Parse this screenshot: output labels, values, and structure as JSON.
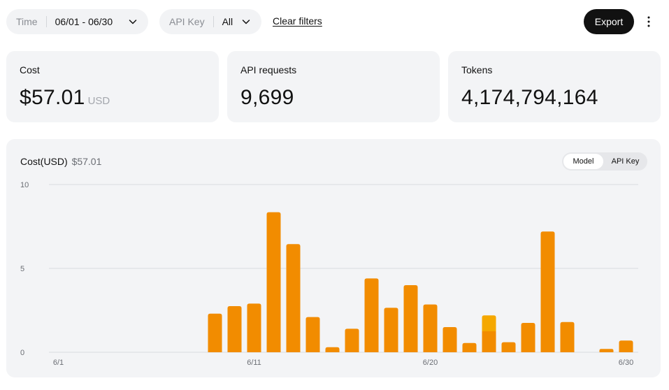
{
  "filters": {
    "time_label": "Time",
    "time_value": "06/01 - 06/30",
    "apikey_label": "API Key",
    "apikey_value": "All",
    "clear_label": "Clear filters"
  },
  "toolbar": {
    "export_label": "Export",
    "more_icon": "more-vertical-icon"
  },
  "stats": {
    "cost": {
      "title": "Cost",
      "value": "$57.01",
      "unit": "USD"
    },
    "requests": {
      "title": "API requests",
      "value": "9,699"
    },
    "tokens": {
      "title": "Tokens",
      "value": "4,174,794,164"
    }
  },
  "chart_panel": {
    "title": "Cost(USD)",
    "total": "$57.01",
    "group_by": {
      "options": [
        "Model",
        "API Key"
      ],
      "selected": "Model"
    }
  },
  "chart_data": {
    "type": "bar",
    "stacked": true,
    "ylim": [
      0,
      10
    ],
    "yticks": [
      "0",
      "5",
      "10"
    ],
    "x_tick_labels": [
      {
        "day": 1,
        "label": "6/1"
      },
      {
        "day": 11,
        "label": "6/11"
      },
      {
        "day": 20,
        "label": "6/20"
      },
      {
        "day": 30,
        "label": "6/30"
      }
    ],
    "days": [
      1,
      2,
      3,
      4,
      5,
      6,
      7,
      8,
      9,
      10,
      11,
      12,
      13,
      14,
      15,
      16,
      17,
      18,
      19,
      20,
      21,
      22,
      23,
      24,
      25,
      26,
      27,
      28,
      29,
      30
    ],
    "series": [
      {
        "color": "#f28c00",
        "values": [
          0,
          0,
          0,
          0,
          0,
          0,
          0,
          0,
          2.3,
          2.75,
          2.9,
          8.35,
          6.45,
          2.1,
          0.3,
          1.4,
          4.4,
          2.65,
          4.0,
          2.85,
          1.5,
          0.55,
          1.25,
          0.6,
          1.75,
          7.2,
          1.8,
          0,
          0.2,
          0.7
        ]
      },
      {
        "color": "#f5a800",
        "values": [
          0,
          0,
          0,
          0,
          0,
          0,
          0,
          0,
          0,
          0,
          0,
          0,
          0,
          0,
          0,
          0,
          0,
          0,
          0,
          0,
          0,
          0,
          0.95,
          0,
          0,
          0,
          0,
          0,
          0,
          0
        ]
      }
    ],
    "grid": true,
    "legend": "none"
  }
}
